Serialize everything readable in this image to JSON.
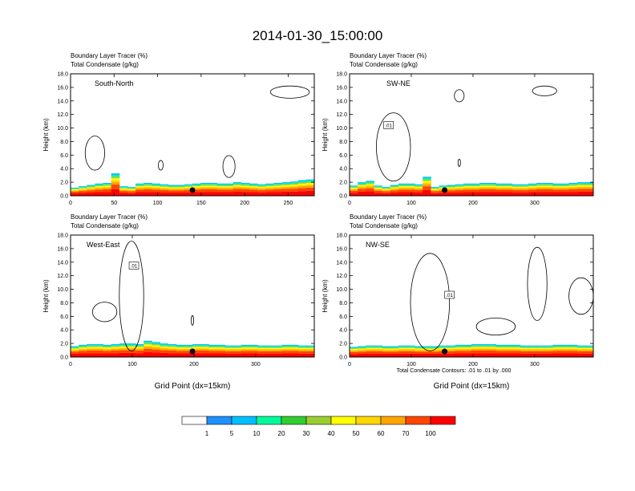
{
  "title": "2014-01-30_15:00:00",
  "colors": {
    "levels": [
      "#ffffff",
      "#1e90ff",
      "#00bfff",
      "#00fa9a",
      "#32cd32",
      "#9acd32",
      "#ffff00",
      "#ffd700",
      "#ffa500",
      "#ff4500",
      "#ff0000"
    ],
    "contour": "#000000"
  },
  "colorbar": {
    "labels": [
      "1",
      "5",
      "10",
      "20",
      "30",
      "40",
      "50",
      "60",
      "70",
      "100"
    ]
  },
  "footnote": "Total Condensate Contours: .01 to .01 by .000",
  "xlabel": "Grid Point (dx=15km)",
  "chart_data": [
    {
      "type": "heatmap",
      "panel": "South-North",
      "header1": "Boundary Layer Tracer   (%)",
      "header2": "Total Condensate   (g/kg)",
      "ylabel": "Height (km)",
      "xlabel": "",
      "xlim": [
        0,
        280
      ],
      "ylim": [
        0,
        18
      ],
      "xticks": [
        "0",
        "50",
        "100",
        "150",
        "200",
        "250"
      ],
      "xtick_values": [
        0,
        50,
        100,
        150,
        200,
        250
      ],
      "yticks": [
        "0.0",
        "2.0",
        "4.0",
        "6.0",
        "8.0",
        "10.0",
        "12.0",
        "14.0",
        "16.0",
        "18.0"
      ],
      "tracer_top_km": [
        1.2,
        1.4,
        1.6,
        1.8,
        1.9,
        3.3,
        1.4,
        1.3,
        1.8,
        1.9,
        1.8,
        1.7,
        1.6,
        1.6,
        1.7,
        1.8,
        1.9,
        1.9,
        1.8,
        1.8,
        2.0,
        1.9,
        1.8,
        1.7,
        1.8,
        1.9,
        2.0,
        2.1,
        2.3,
        2.4
      ],
      "contour_label": ""
    },
    {
      "type": "heatmap",
      "panel": "SW-NE",
      "header1": "Boundary Layer Tracer   (%)",
      "header2": "Total Condensate   (g/kg)",
      "ylabel": "Height (km)",
      "xlabel": "",
      "xlim": [
        0,
        395
      ],
      "ylim": [
        0,
        18
      ],
      "xticks": [
        "0",
        "100",
        "200",
        "300"
      ],
      "xtick_values": [
        0,
        100,
        200,
        300
      ],
      "yticks": [
        "0.0",
        "2.0",
        "4.0",
        "6.0",
        "8.0",
        "10.0",
        "12.0",
        "14.0",
        "16.0",
        "18.0"
      ],
      "tracer_top_km": [
        1.5,
        2.0,
        2.2,
        1.5,
        1.3,
        1.6,
        1.8,
        1.8,
        1.7,
        2.8,
        1.3,
        1.5,
        1.6,
        1.7,
        1.8,
        1.8,
        1.9,
        1.9,
        1.8,
        1.8,
        1.7,
        1.7,
        1.8,
        1.9,
        1.9,
        1.8,
        1.8,
        1.9,
        2.0,
        2.0
      ],
      "contour_label": ".01"
    },
    {
      "type": "heatmap",
      "panel": "West-East",
      "header1": "Boundary Layer Tracer   (%)",
      "header2": "Total Condensate   (g/kg)",
      "ylabel": "Height (km)",
      "xlabel": "Grid Point (dx=15km)",
      "xlim": [
        0,
        395
      ],
      "ylim": [
        0,
        18
      ],
      "xticks": [
        "0",
        "100",
        "200",
        "300"
      ],
      "xtick_values": [
        0,
        100,
        200,
        300
      ],
      "yticks": [
        "0.0",
        "2.0",
        "4.0",
        "6.0",
        "8.0",
        "10.0",
        "12.0",
        "14.0",
        "16.0",
        "18.0"
      ],
      "tracer_top_km": [
        1.6,
        1.8,
        1.9,
        1.9,
        1.8,
        1.9,
        2.0,
        2.0,
        1.9,
        2.4,
        2.2,
        2.0,
        1.9,
        1.8,
        1.8,
        1.9,
        1.9,
        1.8,
        1.8,
        1.7,
        1.7,
        1.8,
        1.8,
        1.7,
        1.7,
        1.7,
        1.8,
        1.8,
        1.7,
        1.7
      ],
      "contour_label": ".01"
    },
    {
      "type": "heatmap",
      "panel": "NW-SE",
      "header1": "Boundary Layer Tracer   (%)",
      "header2": "Total Condensate   (g/kg)",
      "ylabel": "Height (km)",
      "xlabel": "Grid Point (dx=15km)",
      "xlim": [
        0,
        395
      ],
      "ylim": [
        0,
        18
      ],
      "xticks": [
        "0",
        "100",
        "200",
        "300"
      ],
      "xtick_values": [
        0,
        100,
        200,
        300
      ],
      "yticks": [
        "0.0",
        "2.0",
        "4.0",
        "6.0",
        "8.0",
        "10.0",
        "12.0",
        "14.0",
        "16.0",
        "18.0"
      ],
      "tracer_top_km": [
        1.5,
        1.6,
        1.7,
        1.7,
        1.6,
        1.6,
        1.7,
        1.7,
        1.6,
        1.6,
        1.6,
        1.7,
        1.7,
        1.8,
        1.8,
        1.9,
        1.9,
        1.9,
        1.8,
        1.8,
        1.8,
        1.7,
        1.7,
        1.7,
        1.7,
        1.8,
        1.8,
        1.8,
        1.7,
        1.7
      ],
      "contour_label": ".01"
    }
  ]
}
